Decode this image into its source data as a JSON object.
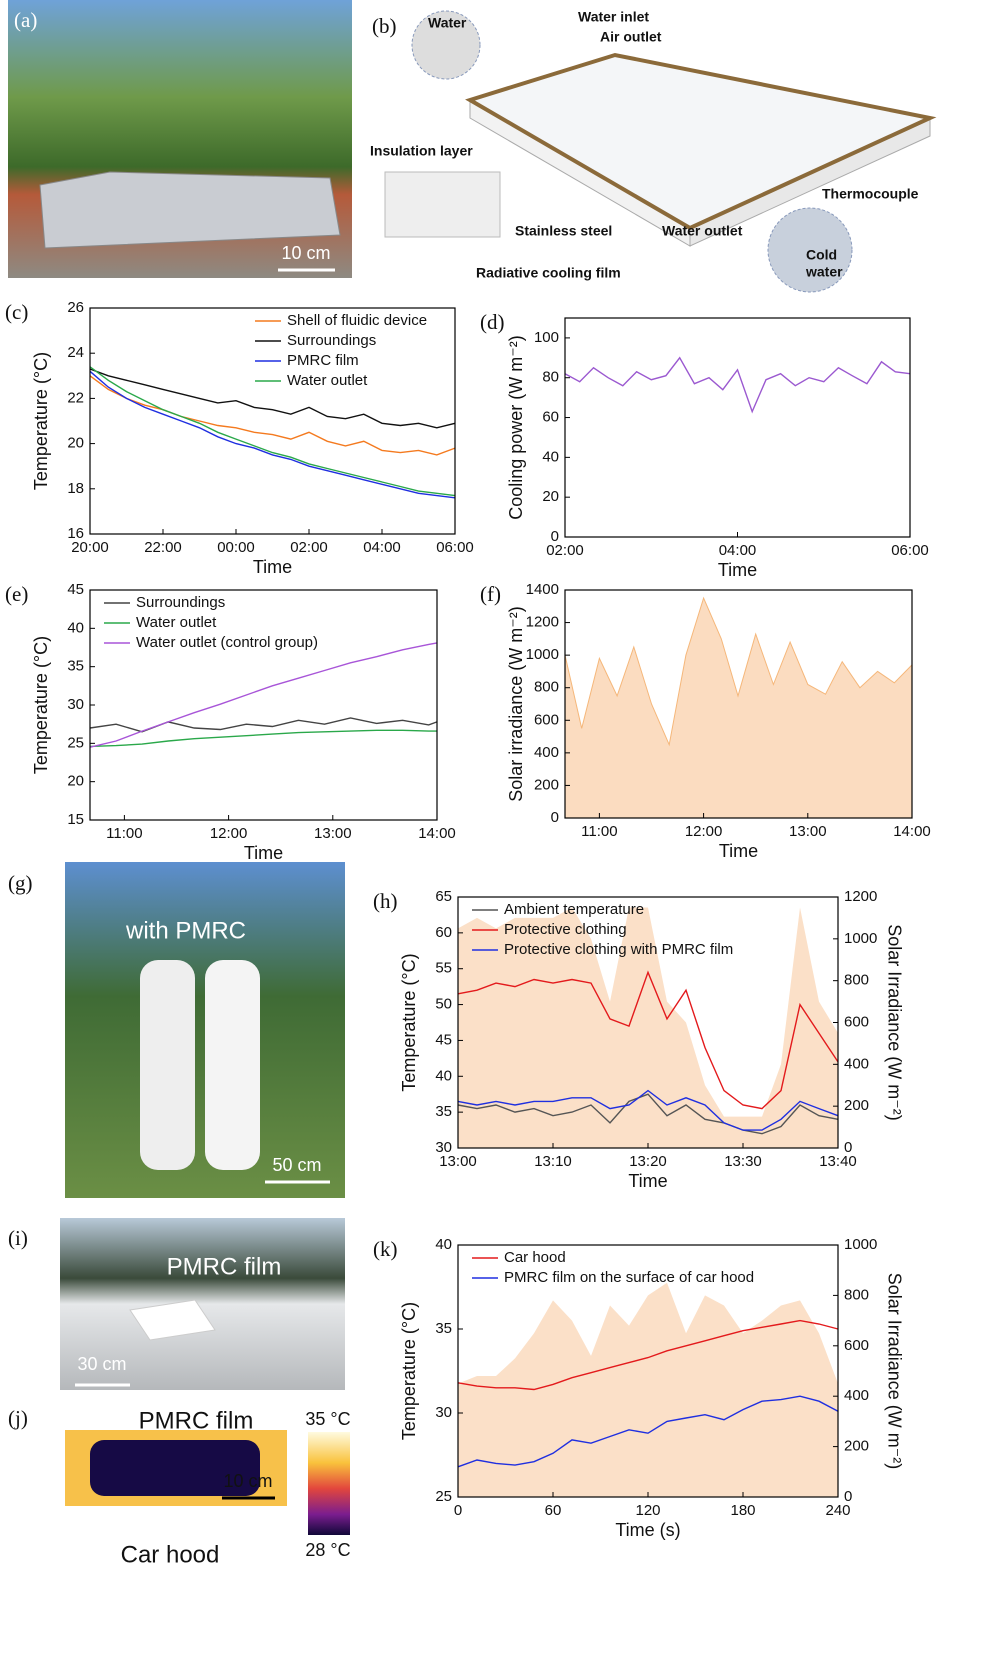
{
  "figure": {
    "a": {
      "label": "(a)",
      "scale": "10 cm"
    },
    "b": {
      "label": "(b)",
      "water": "Water",
      "water_inlet": "Water inlet",
      "air_outlet": "Air outlet",
      "insulation": "Insulation layer",
      "thermocouple": "Thermocouple",
      "stainless": "Stainless steel",
      "water_outlet": "Water outlet",
      "film": "Radiative cooling film",
      "cold": "Cold",
      "cold_water": "water"
    },
    "g": {
      "label": "(g)",
      "caption": "with PMRC",
      "scale": "50 cm"
    },
    "i": {
      "label": "(i)",
      "caption": "PMRC film",
      "scale": "30 cm"
    },
    "j": {
      "label": "(j)",
      "caption": "PMRC film",
      "scale": "10 cm",
      "hood": "Car hood",
      "cbar_max": "35 °C",
      "cbar_min": "28 °C"
    }
  },
  "chart_data": [
    {
      "type": "line",
      "label": "(c)",
      "xlabel": "Time",
      "ylabel": "Temperature (°C)",
      "legend": "upper right",
      "xlim": [
        0,
        10
      ],
      "xticks": [
        {
          "value": 0,
          "label": "20:00"
        },
        {
          "value": 2,
          "label": "22:00"
        },
        {
          "value": 4,
          "label": "00:00"
        },
        {
          "value": 6,
          "label": "02:00"
        },
        {
          "value": 8,
          "label": "04:00"
        },
        {
          "value": 10,
          "label": "06:00"
        }
      ],
      "ylim": [
        16,
        26
      ],
      "yticks": [
        16,
        18,
        20,
        22,
        24,
        26
      ],
      "x": [
        0,
        0.5,
        1,
        1.5,
        2,
        2.5,
        3,
        3.5,
        4,
        4.5,
        5,
        5.5,
        6,
        6.5,
        7,
        7.5,
        8,
        8.5,
        9,
        9.5,
        10
      ],
      "series": [
        {
          "name": "Shell of fluidic device",
          "color": "#f47a1f",
          "values": [
            23.0,
            22.4,
            22.0,
            21.7,
            21.5,
            21.2,
            21.0,
            20.8,
            20.7,
            20.5,
            20.4,
            20.2,
            20.5,
            20.1,
            19.9,
            20.1,
            19.7,
            19.6,
            19.7,
            19.5,
            19.8
          ]
        },
        {
          "name": "Surroundings",
          "color": "#111111",
          "values": [
            23.3,
            23.0,
            22.8,
            22.6,
            22.4,
            22.2,
            22.0,
            21.8,
            21.9,
            21.6,
            21.5,
            21.3,
            21.6,
            21.2,
            21.1,
            21.3,
            20.9,
            20.8,
            20.9,
            20.7,
            20.9
          ]
        },
        {
          "name": "PMRC film",
          "color": "#1f2fe0",
          "values": [
            23.2,
            22.5,
            22.0,
            21.6,
            21.3,
            21.0,
            20.7,
            20.3,
            20.0,
            19.8,
            19.5,
            19.3,
            19.0,
            18.8,
            18.6,
            18.4,
            18.2,
            18.0,
            17.8,
            17.7,
            17.6
          ]
        },
        {
          "name": "Water outlet",
          "color": "#2aa84a",
          "values": [
            23.4,
            22.8,
            22.3,
            21.9,
            21.5,
            21.2,
            20.9,
            20.5,
            20.2,
            19.9,
            19.6,
            19.4,
            19.1,
            18.9,
            18.7,
            18.5,
            18.3,
            18.1,
            17.9,
            17.8,
            17.7
          ]
        }
      ]
    },
    {
      "type": "line",
      "label": "(d)",
      "xlabel": "Time",
      "ylabel": "Cooling power (W m⁻²)",
      "xlim": [
        2,
        6
      ],
      "xticks": [
        {
          "value": 2,
          "label": "02:00"
        },
        {
          "value": 4,
          "label": "04:00"
        },
        {
          "value": 6,
          "label": "06:00"
        }
      ],
      "ylim": [
        0,
        110
      ],
      "yticks": [
        0,
        20,
        40,
        60,
        80,
        100
      ],
      "x": [
        2,
        2.17,
        2.33,
        2.5,
        2.67,
        2.83,
        3,
        3.17,
        3.33,
        3.5,
        3.67,
        3.83,
        4,
        4.17,
        4.33,
        4.5,
        4.67,
        4.83,
        5,
        5.17,
        5.33,
        5.5,
        5.67,
        5.83,
        6
      ],
      "series": [
        {
          "color": "#9b59d0",
          "values": [
            82,
            78,
            85,
            80,
            76,
            83,
            79,
            81,
            90,
            77,
            80,
            74,
            84,
            63,
            79,
            82,
            76,
            80,
            78,
            85,
            81,
            77,
            88,
            83,
            82
          ]
        }
      ]
    },
    {
      "type": "line",
      "label": "(e)",
      "xlabel": "Time",
      "ylabel": "Temperature (°C)",
      "legend": "upper left",
      "xlim": [
        10.67,
        14
      ],
      "xticks": [
        {
          "value": 11,
          "label": "11:00"
        },
        {
          "value": 12,
          "label": "12:00"
        },
        {
          "value": 13,
          "label": "13:00"
        },
        {
          "value": 14,
          "label": "14:00"
        }
      ],
      "ylim": [
        15,
        45
      ],
      "yticks": [
        15,
        20,
        25,
        30,
        35,
        40,
        45
      ],
      "x": [
        10.67,
        10.92,
        11.17,
        11.42,
        11.67,
        11.92,
        12.17,
        12.42,
        12.67,
        12.92,
        13.17,
        13.42,
        13.67,
        13.92,
        14
      ],
      "series": [
        {
          "name": "Surroundings",
          "color": "#444444",
          "values": [
            27,
            27.5,
            26.5,
            27.8,
            27,
            26.8,
            27.5,
            27.2,
            28,
            27.5,
            28.3,
            27.6,
            28,
            27.4,
            27.8
          ]
        },
        {
          "name": "Water outlet",
          "color": "#2aa84a",
          "values": [
            24.6,
            24.7,
            24.9,
            25.3,
            25.6,
            25.8,
            26.0,
            26.2,
            26.4,
            26.5,
            26.6,
            26.7,
            26.7,
            26.6,
            26.6
          ]
        },
        {
          "name": "Water outlet (control group)",
          "color": "#a855d8",
          "values": [
            24.5,
            25.3,
            26.6,
            27.8,
            29.0,
            30.1,
            31.3,
            32.5,
            33.5,
            34.5,
            35.5,
            36.3,
            37.2,
            37.9,
            38.1
          ]
        }
      ]
    },
    {
      "type": "area",
      "label": "(f)",
      "xlabel": "Time",
      "ylabel": "Solar irradiance (W m⁻²)",
      "xlim": [
        10.67,
        14
      ],
      "xticks": [
        {
          "value": 11,
          "label": "11:00"
        },
        {
          "value": 12,
          "label": "12:00"
        },
        {
          "value": 13,
          "label": "13:00"
        },
        {
          "value": 14,
          "label": "14:00"
        }
      ],
      "ylim": [
        0,
        1400
      ],
      "yticks": [
        0,
        200,
        400,
        600,
        800,
        1000,
        1200,
        1400
      ],
      "x": [
        10.67,
        10.83,
        11,
        11.17,
        11.33,
        11.5,
        11.67,
        11.83,
        12,
        12.17,
        12.33,
        12.5,
        12.67,
        12.83,
        13,
        13.17,
        13.33,
        13.5,
        13.67,
        13.83,
        14
      ],
      "series": [
        {
          "type": "area",
          "color": "#fbdcc0",
          "line": "#f5b77a",
          "values": [
            1000,
            550,
            980,
            750,
            1050,
            700,
            450,
            1000,
            1350,
            1100,
            750,
            1130,
            820,
            1080,
            820,
            760,
            960,
            800,
            900,
            830,
            940
          ]
        }
      ]
    },
    {
      "type": "line",
      "label": "(h)",
      "xlabel": "Time",
      "ylabel": "Temperature (°C)",
      "y2label": "Solar Irradiance (W m⁻²)",
      "legend": "upper left",
      "xlim": [
        0,
        40
      ],
      "xticks": [
        {
          "value": 0,
          "label": "13:00"
        },
        {
          "value": 10,
          "label": "13:10"
        },
        {
          "value": 20,
          "label": "13:20"
        },
        {
          "value": 30,
          "label": "13:30"
        },
        {
          "value": 40,
          "label": "13:40"
        }
      ],
      "ylim": [
        30,
        65
      ],
      "yticks": [
        30,
        35,
        40,
        45,
        50,
        55,
        60,
        65
      ],
      "y2lim": [
        0,
        1200
      ],
      "y2ticks": [
        0,
        200,
        400,
        600,
        800,
        1000,
        1200
      ],
      "x": [
        0,
        2,
        4,
        6,
        8,
        10,
        12,
        14,
        16,
        18,
        20,
        22,
        24,
        26,
        28,
        30,
        32,
        34,
        36,
        38,
        40
      ],
      "series": [
        {
          "type": "area",
          "axis": "y2",
          "color": "#fbe0c8",
          "values": [
            1050,
            1100,
            1050,
            1100,
            1100,
            1100,
            1150,
            1000,
            700,
            1150,
            1150,
            700,
            600,
            300,
            150,
            150,
            150,
            400,
            1150,
            700,
            550
          ]
        },
        {
          "name": "Ambient temperature",
          "color": "#555555",
          "values": [
            36,
            35.5,
            36,
            35,
            35.5,
            34.5,
            35,
            36,
            33.5,
            36.5,
            37.5,
            34.5,
            36,
            34,
            33.5,
            32.5,
            32,
            33,
            36,
            34.5,
            34
          ]
        },
        {
          "name": "Protective clothing",
          "color": "#e31a1c",
          "values": [
            51.5,
            52,
            53,
            52.5,
            53.5,
            53,
            53.5,
            53,
            48,
            47,
            54.5,
            48,
            52,
            44,
            38,
            36,
            35.5,
            38,
            50,
            46,
            42
          ]
        },
        {
          "name": "Protective clothing with PMRC film",
          "color": "#1f2fe0",
          "values": [
            36.5,
            36,
            36.5,
            36,
            36.5,
            36.5,
            37,
            37,
            35.5,
            36,
            38,
            36,
            37,
            36,
            33.5,
            32.5,
            32.5,
            34,
            36.5,
            35.5,
            34.5
          ]
        }
      ]
    },
    {
      "type": "line",
      "label": "(k)",
      "xlabel": "Time (s)",
      "ylabel": "Temperature (°C)",
      "y2label": "Solar Irradiance (W m⁻²)",
      "legend": "upper left",
      "xlim": [
        0,
        240
      ],
      "xticks": [
        0,
        60,
        120,
        180,
        240
      ],
      "ylim": [
        25,
        40
      ],
      "yticks": [
        25,
        30,
        35,
        40
      ],
      "y2lim": [
        0,
        1000
      ],
      "y2ticks": [
        0,
        200,
        400,
        600,
        800,
        1000
      ],
      "x": [
        0,
        12,
        24,
        36,
        48,
        60,
        72,
        84,
        96,
        108,
        120,
        132,
        144,
        156,
        168,
        180,
        192,
        204,
        216,
        228,
        240
      ],
      "series": [
        {
          "type": "area",
          "axis": "y2",
          "color": "#fbe0c8",
          "values": [
            450,
            480,
            480,
            550,
            650,
            780,
            700,
            560,
            760,
            680,
            800,
            850,
            650,
            800,
            760,
            650,
            700,
            760,
            780,
            650,
            450
          ]
        },
        {
          "name": "Car hood",
          "color": "#e31a1c",
          "values": [
            31.8,
            31.6,
            31.5,
            31.5,
            31.4,
            31.7,
            32.1,
            32.4,
            32.7,
            33.0,
            33.3,
            33.7,
            34.0,
            34.3,
            34.6,
            34.9,
            35.1,
            35.3,
            35.5,
            35.3,
            35.0
          ]
        },
        {
          "name": "PMRC film on the surface of car hood",
          "color": "#1f2fe0",
          "values": [
            26.8,
            27.2,
            27.0,
            26.9,
            27.1,
            27.6,
            28.4,
            28.2,
            28.6,
            29.0,
            28.8,
            29.5,
            29.7,
            29.9,
            29.6,
            30.2,
            30.7,
            30.8,
            31.0,
            30.7,
            30.1
          ]
        }
      ]
    }
  ]
}
